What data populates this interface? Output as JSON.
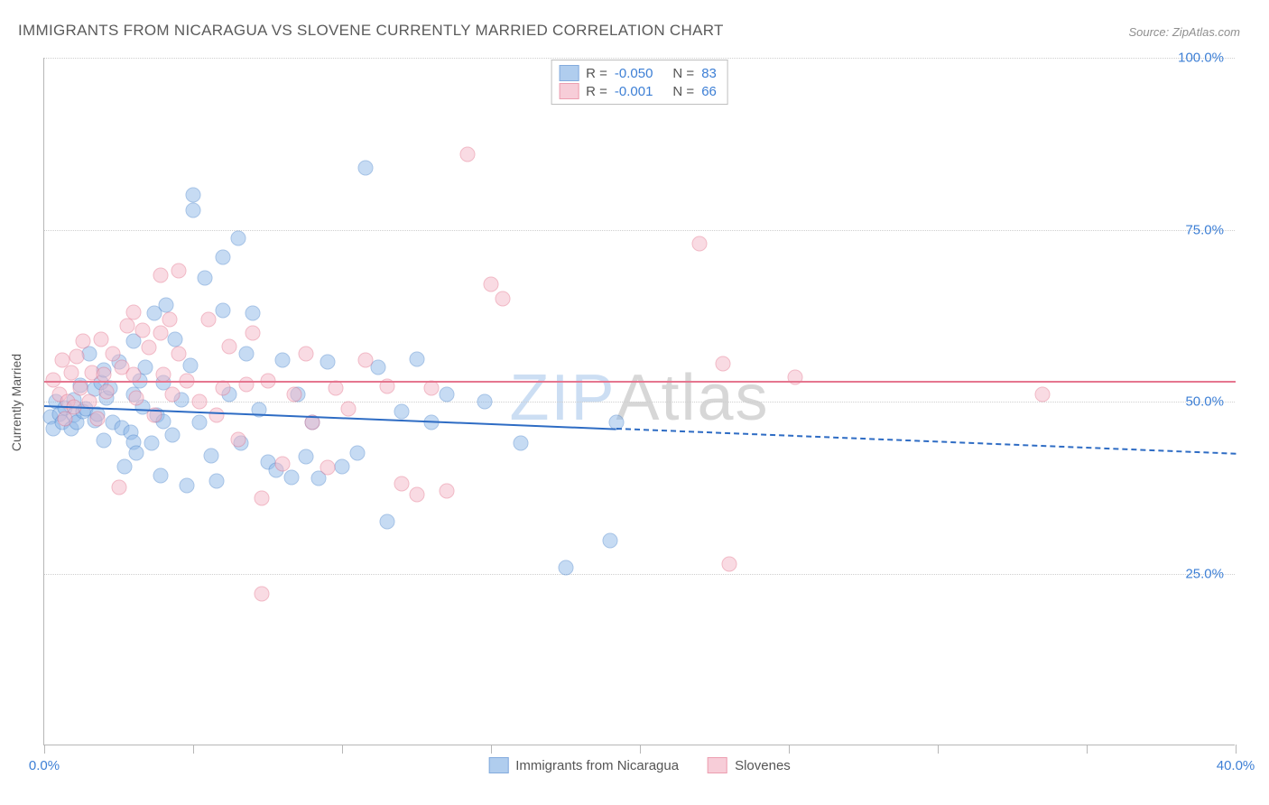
{
  "title": "IMMIGRANTS FROM NICARAGUA VS SLOVENE CURRENTLY MARRIED CORRELATION CHART",
  "source_label": "Source: ZipAtlas.com",
  "watermark": {
    "part1": "ZIP",
    "part2": "Atlas"
  },
  "ylabel": "Currently Married",
  "chart": {
    "type": "scatter",
    "xlim": [
      0,
      40
    ],
    "ylim": [
      0,
      100
    ],
    "xticks": [
      0,
      5,
      10,
      15,
      20,
      25,
      30,
      35,
      40
    ],
    "xtick_labels_shown": {
      "0": "0.0%",
      "40": "40.0%"
    },
    "yticks": [
      25,
      50,
      75,
      100
    ],
    "ytick_labels": {
      "25": "25.0%",
      "50": "50.0%",
      "75": "75.0%",
      "100": "100.0%"
    },
    "grid_color": "#cfcfcf",
    "axis_color": "#b7b7b7",
    "background": "#ffffff",
    "tick_label_color": "#3d7fd5",
    "marker_radius": 8.5,
    "marker_opacity": 0.5,
    "series": [
      {
        "name": "Immigrants from Nicaragua",
        "fill": "#8fb8e8",
        "stroke": "#4f88cf",
        "R": "-0.050",
        "N": "83",
        "trend": {
          "y_at_x0": 49.5,
          "y_at_x40": 42.5,
          "solid_x_end": 19.2,
          "color": "#2e6cc4"
        },
        "points": [
          [
            0.2,
            47.8
          ],
          [
            0.3,
            46.0
          ],
          [
            0.4,
            50.0
          ],
          [
            0.5,
            48.2
          ],
          [
            0.6,
            47.0
          ],
          [
            0.7,
            49.1
          ],
          [
            0.9,
            46.1
          ],
          [
            1.0,
            50.2
          ],
          [
            1.0,
            48.0
          ],
          [
            1.1,
            47.0
          ],
          [
            1.2,
            52.3
          ],
          [
            1.3,
            48.5
          ],
          [
            1.4,
            49.0
          ],
          [
            1.5,
            57.0
          ],
          [
            1.7,
            47.2
          ],
          [
            1.7,
            51.8
          ],
          [
            1.8,
            48.1
          ],
          [
            1.9,
            52.8
          ],
          [
            2.0,
            44.4
          ],
          [
            2.0,
            54.6
          ],
          [
            2.1,
            50.5
          ],
          [
            2.2,
            52.0
          ],
          [
            2.3,
            47.0
          ],
          [
            2.5,
            55.8
          ],
          [
            2.6,
            46.2
          ],
          [
            2.7,
            40.6
          ],
          [
            2.9,
            45.6
          ],
          [
            3.0,
            58.8
          ],
          [
            3.0,
            51.0
          ],
          [
            3.0,
            44.1
          ],
          [
            3.1,
            42.5
          ],
          [
            3.2,
            53.0
          ],
          [
            3.3,
            49.2
          ],
          [
            3.4,
            55.0
          ],
          [
            3.6,
            44.0
          ],
          [
            3.7,
            62.8
          ],
          [
            3.8,
            48.0
          ],
          [
            3.9,
            39.2
          ],
          [
            4.0,
            52.7
          ],
          [
            4.0,
            47.1
          ],
          [
            4.1,
            64.0
          ],
          [
            4.3,
            45.2
          ],
          [
            4.4,
            59.0
          ],
          [
            4.6,
            50.2
          ],
          [
            4.8,
            37.8
          ],
          [
            4.9,
            55.2
          ],
          [
            5.0,
            77.8
          ],
          [
            5.0,
            80.0
          ],
          [
            5.2,
            47.0
          ],
          [
            5.4,
            68.0
          ],
          [
            5.6,
            42.1
          ],
          [
            5.8,
            38.5
          ],
          [
            6.0,
            71.0
          ],
          [
            6.0,
            63.2
          ],
          [
            6.2,
            51.0
          ],
          [
            6.5,
            73.8
          ],
          [
            6.6,
            44.0
          ],
          [
            6.8,
            57.0
          ],
          [
            7.0,
            62.8
          ],
          [
            7.2,
            48.8
          ],
          [
            7.5,
            41.2
          ],
          [
            7.8,
            40.0
          ],
          [
            8.0,
            56.0
          ],
          [
            8.3,
            39.0
          ],
          [
            8.5,
            51.0
          ],
          [
            8.8,
            42.0
          ],
          [
            9.0,
            47.0
          ],
          [
            9.2,
            38.8
          ],
          [
            9.5,
            55.8
          ],
          [
            10.0,
            40.5
          ],
          [
            10.5,
            42.5
          ],
          [
            10.8,
            84.0
          ],
          [
            11.2,
            55.0
          ],
          [
            11.5,
            32.5
          ],
          [
            12.0,
            48.5
          ],
          [
            12.5,
            56.2
          ],
          [
            13.0,
            47.0
          ],
          [
            13.5,
            51.0
          ],
          [
            14.8,
            50.0
          ],
          [
            16.0,
            44.0
          ],
          [
            17.5,
            25.8
          ],
          [
            19.0,
            29.8
          ],
          [
            19.2,
            47.0
          ]
        ]
      },
      {
        "name": "Slovenes",
        "fill": "#f4b8c8",
        "stroke": "#e5768f",
        "R": "-0.001",
        "N": "66",
        "trend": {
          "y_at_x0": 53.0,
          "y_at_x40": 53.0,
          "solid_x_end": 40,
          "color": "#e5768f"
        },
        "points": [
          [
            0.3,
            53.2
          ],
          [
            0.5,
            51.0
          ],
          [
            0.6,
            56.0
          ],
          [
            0.7,
            47.5
          ],
          [
            0.8,
            50.0
          ],
          [
            0.9,
            54.2
          ],
          [
            1.0,
            49.2
          ],
          [
            1.1,
            56.5
          ],
          [
            1.2,
            52.0
          ],
          [
            1.3,
            58.8
          ],
          [
            1.5,
            50.0
          ],
          [
            1.6,
            54.2
          ],
          [
            1.8,
            47.5
          ],
          [
            1.9,
            59.0
          ],
          [
            2.0,
            54.0
          ],
          [
            2.1,
            51.5
          ],
          [
            2.3,
            57.0
          ],
          [
            2.5,
            37.5
          ],
          [
            2.6,
            55.0
          ],
          [
            2.8,
            61.0
          ],
          [
            3.0,
            54.0
          ],
          [
            3.0,
            63.0
          ],
          [
            3.1,
            50.5
          ],
          [
            3.3,
            60.4
          ],
          [
            3.5,
            57.9
          ],
          [
            3.7,
            48.0
          ],
          [
            3.9,
            60.0
          ],
          [
            3.9,
            68.4
          ],
          [
            4.0,
            54.0
          ],
          [
            4.2,
            62.0
          ],
          [
            4.3,
            51.0
          ],
          [
            4.5,
            69.0
          ],
          [
            4.5,
            57.0
          ],
          [
            4.8,
            53.0
          ],
          [
            5.2,
            50.0
          ],
          [
            5.5,
            62.0
          ],
          [
            5.8,
            48.0
          ],
          [
            6.0,
            52.0
          ],
          [
            6.2,
            58.0
          ],
          [
            6.5,
            44.5
          ],
          [
            6.8,
            52.5
          ],
          [
            7.0,
            60.0
          ],
          [
            7.3,
            36.0
          ],
          [
            7.3,
            22.0
          ],
          [
            7.5,
            53.0
          ],
          [
            8.0,
            41.0
          ],
          [
            8.4,
            51.0
          ],
          [
            8.8,
            57.0
          ],
          [
            9.0,
            47.0
          ],
          [
            9.5,
            40.4
          ],
          [
            9.8,
            52.0
          ],
          [
            10.2,
            49.0
          ],
          [
            10.8,
            56.0
          ],
          [
            11.5,
            52.2
          ],
          [
            12.0,
            38.0
          ],
          [
            12.5,
            36.5
          ],
          [
            13.0,
            52.0
          ],
          [
            13.5,
            37.0
          ],
          [
            14.2,
            86.0
          ],
          [
            15.0,
            67.0
          ],
          [
            15.4,
            65.0
          ],
          [
            22.0,
            73.0
          ],
          [
            22.8,
            55.5
          ],
          [
            23.0,
            26.4
          ],
          [
            25.2,
            53.6
          ],
          [
            33.5,
            51.0
          ]
        ]
      }
    ],
    "legend_top_labels": {
      "R": "R =",
      "N": "N ="
    },
    "legend_bottom_items": [
      "Immigrants from Nicaragua",
      "Slovenes"
    ]
  }
}
